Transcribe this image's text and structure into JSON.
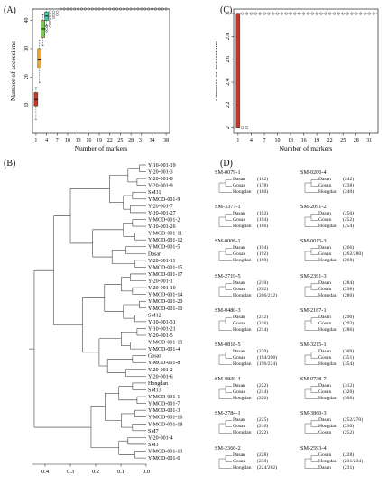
{
  "panels": {
    "A": "(A)",
    "B": "(B)",
    "C": "(C)",
    "D": "(D)"
  },
  "chart_data": [
    {
      "type": "box",
      "id": "A",
      "xlabel": "Number of markers",
      "ylabel": "Number of accessions",
      "xticks": [
        1,
        4,
        7,
        10,
        13,
        16,
        19,
        22,
        25,
        28,
        31,
        34,
        38
      ],
      "yticks": [
        10,
        20,
        30,
        40
      ],
      "xlim": [
        0,
        39
      ],
      "ylim": [
        0,
        44
      ],
      "reference_line_y": 44,
      "boxes": [
        {
          "x": 1,
          "q1": 9.5,
          "median": 12,
          "q3": 14.5,
          "lo": 5,
          "hi": 16,
          "color": "#c0392b"
        },
        {
          "x": 2,
          "q1": 23,
          "median": 26,
          "q3": 30,
          "lo": 18,
          "hi": 33,
          "color": "#e6a93a"
        },
        {
          "x": 3,
          "q1": 34,
          "median": 37,
          "q3": 40,
          "lo": 31,
          "hi": 42,
          "color": "#7ec850"
        },
        {
          "x": 4,
          "q1": 40,
          "median": 41.5,
          "q3": 43,
          "lo": 38,
          "hi": 44,
          "color": "#48c9a6"
        }
      ],
      "outliers": [
        {
          "x": 4,
          "y": [
            36,
            37,
            38
          ]
        },
        {
          "x": 5,
          "y": [
            38,
            39,
            40,
            41,
            42,
            43
          ]
        },
        {
          "x": 6,
          "y": [
            41,
            42,
            43
          ]
        },
        {
          "x": 7,
          "y": [
            42,
            43
          ]
        }
      ],
      "flat_points": {
        "x_from": 8,
        "x_to": 38,
        "y": 44
      }
    },
    {
      "type": "box",
      "id": "C",
      "xlabel": "Number of markers",
      "ylabel": "Number of accessions",
      "xticks": [
        1,
        4,
        7,
        10,
        13,
        16,
        19,
        22,
        25,
        28,
        31
      ],
      "yticks": [
        2.0,
        2.2,
        2.4,
        2.6,
        2.8,
        3.0
      ],
      "xlim": [
        0,
        33
      ],
      "ylim": [
        1.95,
        3.04
      ],
      "reference_line_y": 3.0,
      "boxes": [
        {
          "x": 1,
          "q1": 2.0,
          "median": 3.0,
          "q3": 3.0,
          "lo": 2.0,
          "hi": 3.0,
          "color": "#c0392b"
        }
      ],
      "outliers": [
        {
          "x": 2,
          "y": [
            2.0
          ]
        },
        {
          "x": 3,
          "y": [
            2.0
          ]
        }
      ],
      "flat_points": {
        "x_from": 2,
        "x_to": 32,
        "y": 3.0
      }
    },
    {
      "type": "dendrogram",
      "id": "B",
      "xticks": [
        0.4,
        0.3,
        0.2,
        0.1,
        0.0
      ],
      "leaves": [
        "Y-10-001-19",
        "Y-20-001-3",
        "Y-20-001-8",
        "Y-20-001-9",
        "SM11",
        "Y-MCD-001-9",
        "Y-20-001-7",
        "Y-10-001-27",
        "Y-MCD-001-2",
        "Y-10-001-26",
        "Y-MCD-001-11",
        "Y-MCD-001-12",
        "Y-MCD-001-5",
        "Dasan",
        "Y-20-001-11",
        "Y-MCD-001-15",
        "Y-MCD-001-17",
        "Y-20-001-1",
        "Y-20-001-10",
        "Y-MCD-001-14",
        "Y-MCD-001-20",
        "Y-MCD-001-10",
        "SM12",
        "Y-10-001-31",
        "Y-10-001-21",
        "Y-20-001-5",
        "Y-MCD-001-19",
        "Y-MCD-001-4",
        "Gosan",
        "Y-MCD-001-8",
        "Y-20-001-2",
        "Y-20-001-6",
        "Hongdan",
        "SM13",
        "Y-MCD-001-1",
        "Y-MCD-001-7",
        "Y-MCD-001-3",
        "Y-MCD-001-16",
        "Y-MCD-001-18",
        "SM7",
        "Y-20-001-4",
        "SM1",
        "Y-MCD-001-13",
        "Y-MCD-001-6"
      ]
    }
  ],
  "markers": [
    {
      "name": "SM-0079-1",
      "rows": [
        [
          "Dasan",
          "(182)"
        ],
        [
          "Gosan",
          "(178)"
        ],
        [
          "Hongdan",
          "(180)"
        ]
      ]
    },
    {
      "name": "SM-0200-4",
      "rows": [
        [
          "Dasan",
          "(242)"
        ],
        [
          "Gosan",
          "(238)"
        ],
        [
          "Hongdan",
          "(240)"
        ]
      ]
    },
    {
      "name": "SM-3377-1",
      "rows": [
        [
          "Dasan",
          "(192)"
        ],
        [
          "Gosan",
          "(194)"
        ],
        [
          "Hongdan",
          "(186)"
        ]
      ]
    },
    {
      "name": "SM-2091-2",
      "rows": [
        [
          "Dasan",
          "(250)"
        ],
        [
          "Gosan",
          "(252)"
        ],
        [
          "Hongdan",
          "(254)"
        ]
      ]
    },
    {
      "name": "SM-0006-1",
      "rows": [
        [
          "Dasan",
          "(194)"
        ],
        [
          "Gosan",
          "(192)"
        ],
        [
          "Hongdan",
          "(190)"
        ]
      ]
    },
    {
      "name": "SM-0015-3",
      "rows": [
        [
          "Dasan",
          "(266)"
        ],
        [
          "Gosan",
          "(262/280)"
        ],
        [
          "Hongdan",
          "(268)"
        ]
      ]
    },
    {
      "name": "SM-2719-5",
      "rows": [
        [
          "Dasan",
          "(210)"
        ],
        [
          "Gosan",
          "(202)"
        ],
        [
          "Hongdan",
          "(206/212)"
        ]
      ]
    },
    {
      "name": "SM-2391-3",
      "rows": [
        [
          "Dasan",
          "(284)"
        ],
        [
          "Gosan",
          "(298)"
        ],
        [
          "Hongdan",
          "(280)"
        ]
      ]
    },
    {
      "name": "SM-0480-3",
      "rows": [
        [
          "Dasan",
          "(212)"
        ],
        [
          "Gosan",
          "(216)"
        ],
        [
          "Hongdan",
          "(214)"
        ]
      ]
    },
    {
      "name": "SM-2167-1",
      "rows": [
        [
          "Dasan",
          "(290)"
        ],
        [
          "Gosan",
          "(292)"
        ],
        [
          "Hongdan",
          "(286)"
        ]
      ]
    },
    {
      "name": "SM-0818-5",
      "rows": [
        [
          "Dasan",
          "(220)"
        ],
        [
          "Gosan",
          "(194/208)"
        ],
        [
          "Hongdan",
          "(196/224)"
        ]
      ]
    },
    {
      "name": "SM-3215-1",
      "rows": [
        [
          "Dasan",
          "(309)"
        ],
        [
          "Gosan",
          "(351)"
        ],
        [
          "Hongdan",
          "(354)"
        ]
      ]
    },
    {
      "name": "SM-0839-4",
      "rows": [
        [
          "Dasan",
          "(222)"
        ],
        [
          "Gosan",
          "(214)"
        ],
        [
          "Hongdan",
          "(220)"
        ]
      ]
    },
    {
      "name": "SM-0738-7",
      "rows": [
        [
          "Dasan",
          "(312)"
        ],
        [
          "Gosan",
          "(320)"
        ],
        [
          "Hongdan",
          "(308)"
        ]
      ]
    },
    {
      "name": "SM-2784-1",
      "rows": [
        [
          "Dasan",
          "(225)"
        ],
        [
          "Gosan",
          "(216)"
        ],
        [
          "Hongdan",
          "(222)"
        ]
      ]
    },
    {
      "name": "SM-3860-3",
      "rows": [
        [
          "Dasan",
          "(252/270)"
        ],
        [
          "Hongdan",
          "(230)"
        ],
        [
          "Gosan",
          "(252)"
        ]
      ]
    },
    {
      "name": "SM-2366-2",
      "rows": [
        [
          "Dasan",
          "(228)"
        ],
        [
          "Gosan",
          "(230)"
        ],
        [
          "Hongdan",
          "(224/262)"
        ]
      ]
    },
    {
      "name": "SM-2593-4",
      "rows": [
        [
          "Gosan",
          "(228)"
        ],
        [
          "Hongdan",
          "(231/234)"
        ],
        [
          "Dasan",
          "(231)"
        ]
      ]
    }
  ]
}
